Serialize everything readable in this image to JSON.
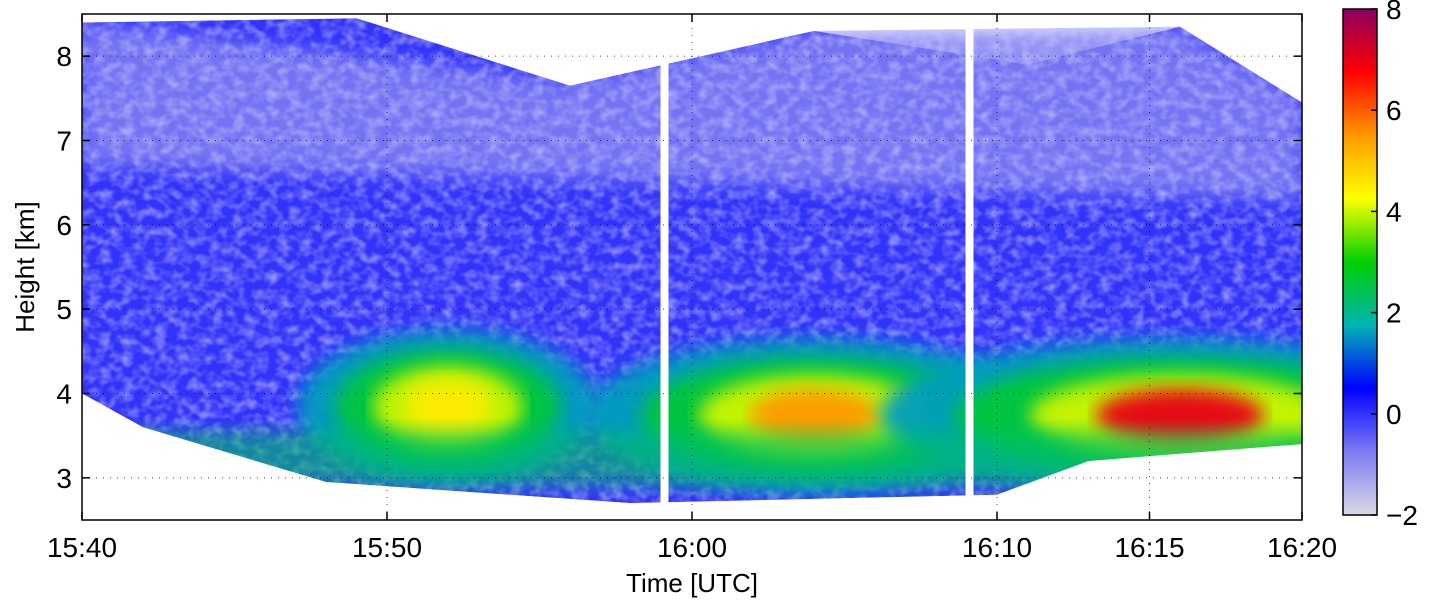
{
  "chart_data": {
    "type": "heatmap",
    "title": "",
    "xlabel": "Time [UTC]",
    "ylabel": "Height [km]",
    "xlim": [
      "15:40",
      "16:20"
    ],
    "ylim": [
      2.5,
      8.5
    ],
    "xticks": [
      "15:40",
      "15:50",
      "16:00",
      "16:10",
      "16:15",
      "16:20"
    ],
    "yticks": [
      3,
      4,
      5,
      6,
      7,
      8
    ],
    "grid": true,
    "colorbar": {
      "ticks": [
        -2,
        0,
        2,
        4,
        6,
        8
      ],
      "range": [
        -2,
        8
      ],
      "colors": [
        "#d9d9e6",
        "#7c7cf2",
        "#0000ff",
        "#00b4b4",
        "#00d000",
        "#ffff00",
        "#ff9900",
        "#ff0000",
        "#8b0060"
      ]
    },
    "data_gaps": [
      "15:59",
      "16:09"
    ],
    "features": {
      "layer_peak_values": [
        {
          "time": "15:52",
          "height_km": 3.9,
          "value": 4.5
        },
        {
          "time": "16:04",
          "height_km": 3.8,
          "value": 5.5
        },
        {
          "time": "16:16",
          "height_km": 3.8,
          "value": 7.0
        }
      ],
      "background_value_mid_troposphere": 0,
      "upper_boundary_km": 8.0,
      "lower_boundary_km": 3.0
    }
  }
}
